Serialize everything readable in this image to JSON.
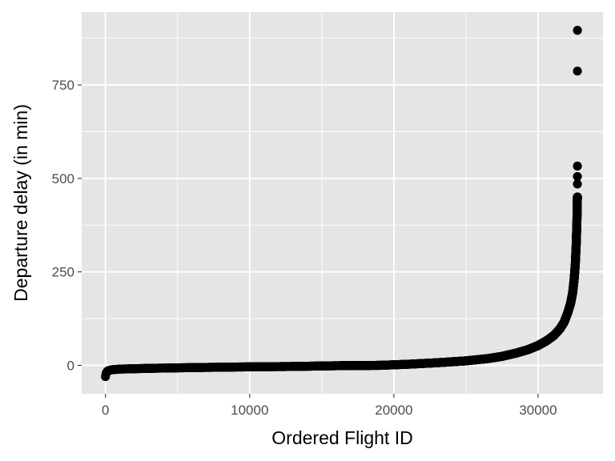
{
  "chart_data": {
    "type": "scatter",
    "title": "",
    "xlabel": "Ordered Flight ID",
    "ylabel": "Departure delay (in min)",
    "xlim": [
      -1650,
      34500
    ],
    "ylim": [
      -76,
      945
    ],
    "x_ticks": [
      0,
      10000,
      20000,
      30000
    ],
    "x_tick_labels": [
      "0",
      "10000",
      "20000",
      "30000"
    ],
    "y_ticks": [
      0,
      250,
      500,
      750
    ],
    "y_tick_labels": [
      "0",
      "250",
      "500",
      "750"
    ],
    "grid": true,
    "legend": "none",
    "colors": {
      "panel": "#e5e5e5",
      "grid": "#ffffff",
      "points": "#000000"
    },
    "n_flights": 32729,
    "sorted_curve": [
      [
        0,
        -30
      ],
      [
        20,
        -25
      ],
      [
        60,
        -20
      ],
      [
        150,
        -15
      ],
      [
        400,
        -12
      ],
      [
        1000,
        -10
      ],
      [
        3000,
        -8
      ],
      [
        6000,
        -6
      ],
      [
        10000,
        -4
      ],
      [
        13000,
        -3
      ],
      [
        16000,
        -1
      ],
      [
        19000,
        0
      ],
      [
        21000,
        3
      ],
      [
        23000,
        7
      ],
      [
        25000,
        12
      ],
      [
        26500,
        18
      ],
      [
        27500,
        24
      ],
      [
        28500,
        33
      ],
      [
        29300,
        42
      ],
      [
        30000,
        53
      ],
      [
        30600,
        66
      ],
      [
        31100,
        80
      ],
      [
        31500,
        97
      ],
      [
        31800,
        115
      ],
      [
        32050,
        140
      ],
      [
        32250,
        165
      ],
      [
        32400,
        195
      ],
      [
        32500,
        230
      ],
      [
        32580,
        270
      ],
      [
        32640,
        320
      ],
      [
        32690,
        380
      ],
      [
        32715,
        430
      ],
      [
        32725,
        450
      ]
    ],
    "outliers": [
      [
        32729,
        896
      ],
      [
        32728,
        787
      ],
      [
        32727,
        533
      ],
      [
        32726,
        505
      ],
      [
        32725,
        485
      ]
    ]
  }
}
